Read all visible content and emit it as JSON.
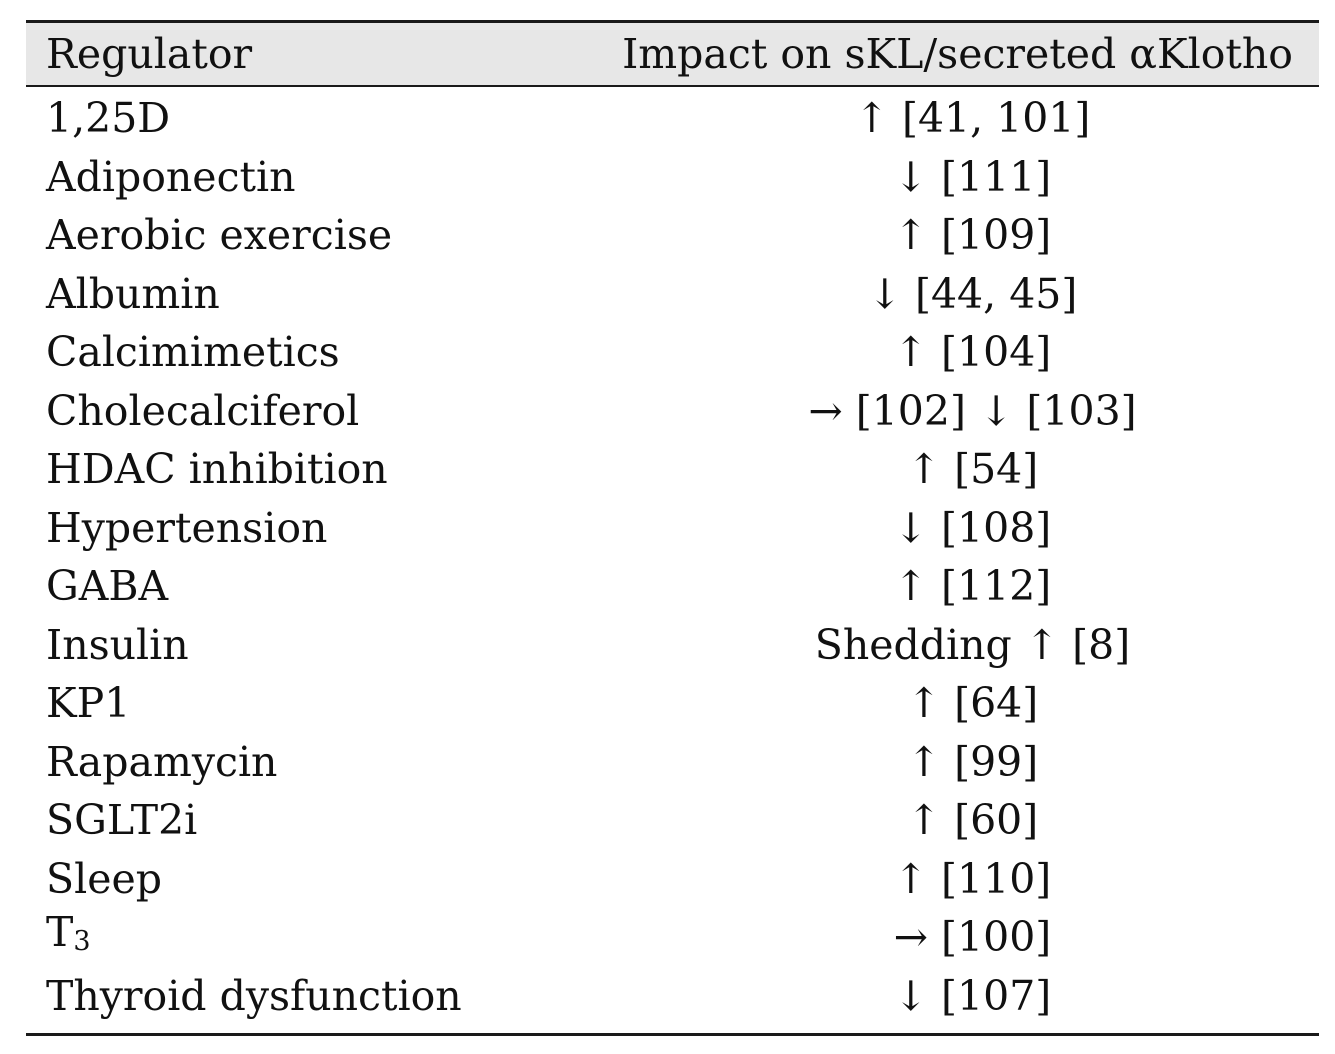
{
  "table": {
    "headers": {
      "regulator": "Regulator",
      "impact": "Impact on sKL/secreted αKlotho"
    },
    "rows": [
      {
        "regulator": "1,25D",
        "impact": "↑ [41, 101]"
      },
      {
        "regulator": "Adiponectin",
        "impact": "↓ [111]"
      },
      {
        "regulator": "Aerobic exercise",
        "impact": "↑ [109]"
      },
      {
        "regulator": "Albumin",
        "impact": "↓ [44, 45]"
      },
      {
        "regulator": "Calcimimetics",
        "impact": "↑ [104]"
      },
      {
        "regulator": "Cholecalciferol",
        "impact": "→ [102] ↓ [103]"
      },
      {
        "regulator": "HDAC inhibition",
        "impact": "↑ [54]"
      },
      {
        "regulator": "Hypertension",
        "impact": "↓ [108]"
      },
      {
        "regulator": "GABA",
        "impact": "↑ [112]"
      },
      {
        "regulator": "Insulin",
        "impact": "Shedding ↑ [8]"
      },
      {
        "regulator": "KP1",
        "impact": "↑ [64]"
      },
      {
        "regulator": "Rapamycin",
        "impact": "↑ [99]"
      },
      {
        "regulator": "SGLT2i",
        "impact": "↑ [60]"
      },
      {
        "regulator": "Sleep",
        "impact": "↑ [110]"
      },
      {
        "regulator_main": "T",
        "regulator_sub": "3",
        "impact": "→ [100]"
      },
      {
        "regulator": "Thyroid dysfunction",
        "impact": "↓ [107]"
      }
    ]
  }
}
